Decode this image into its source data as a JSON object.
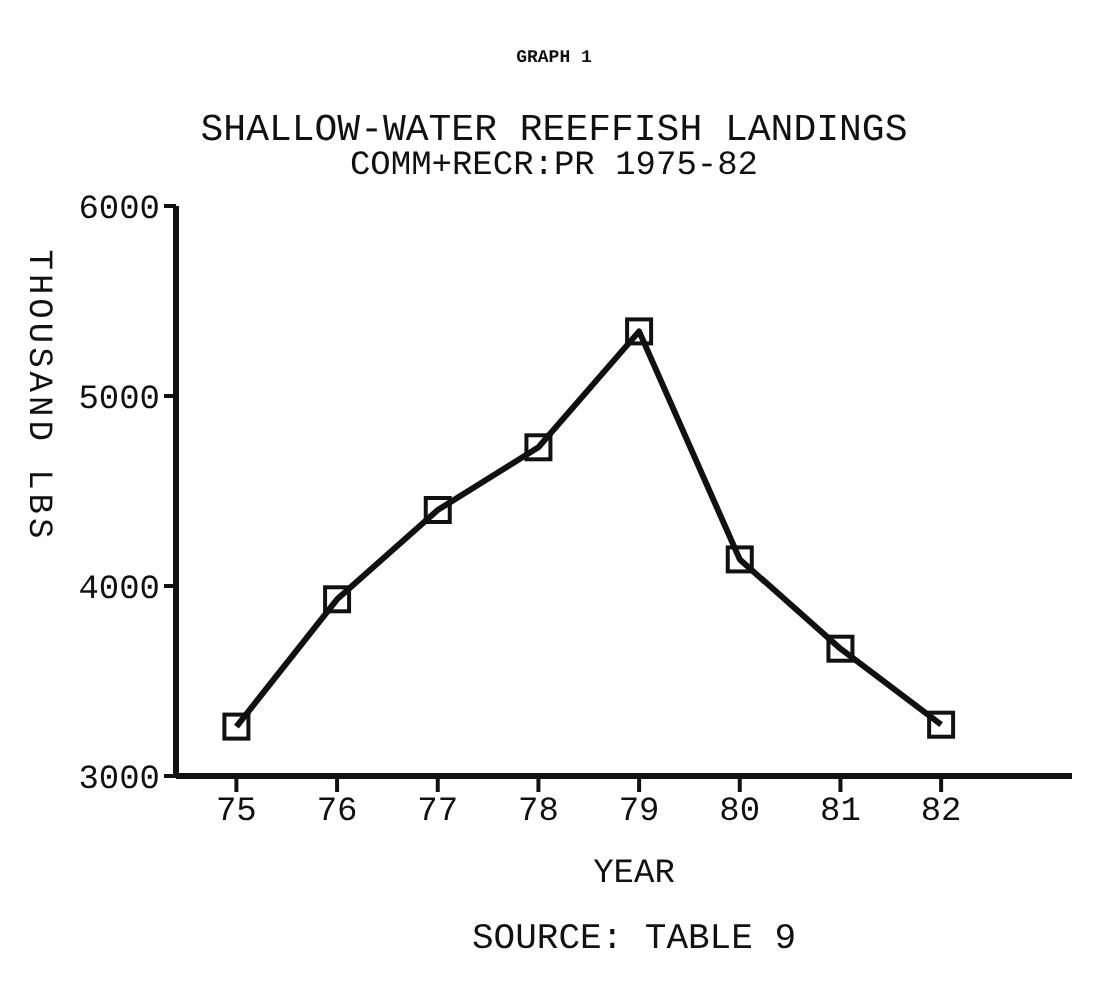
{
  "chart_data": {
    "type": "line",
    "title": "SHALLOW-WATER REEFFISH LANDINGS",
    "subtitle": "COMM+RECR:PR 1975-82",
    "xlabel": "YEAR",
    "ylabel": "THOUSAND LBS",
    "annotations": [
      "GRAPH 1",
      "SOURCE: TABLE 9"
    ],
    "x": [
      75,
      76,
      77,
      78,
      79,
      80,
      81,
      82
    ],
    "series": [
      {
        "color": "#111111",
        "values": [
          3260,
          3930,
          4400,
          4730,
          5340,
          4140,
          3670,
          3270
        ]
      }
    ],
    "xlim": [
      74.4,
      83.3
    ],
    "xticks": [
      75,
      76,
      77,
      78,
      79,
      80,
      81,
      82
    ],
    "ylim": [
      3000,
      6000
    ],
    "yticks": [
      3000,
      4000,
      5000,
      6000
    ],
    "grid": false,
    "legend": false,
    "marker": "square",
    "line_style": "solid"
  }
}
